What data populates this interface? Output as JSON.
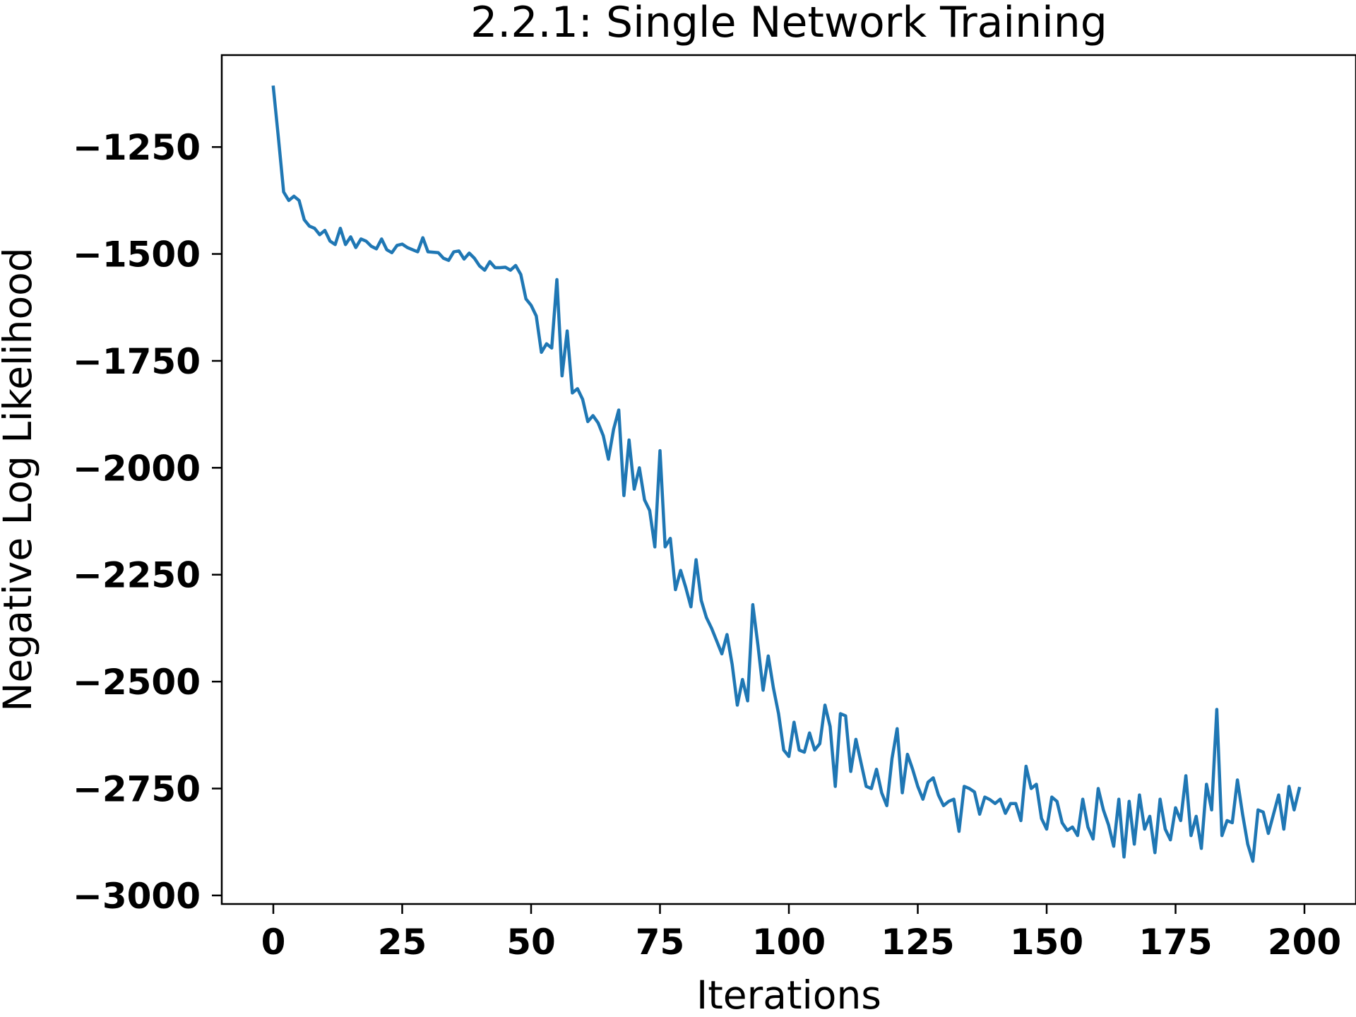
{
  "chart_data": {
    "type": "line",
    "title": "2.2.1: Single Network Training",
    "xlabel": "Iterations",
    "ylabel": "Negative Log Likelihood",
    "xlim": [
      -10,
      210
    ],
    "ylim": [
      -3020,
      -1035
    ],
    "xticks": [
      0,
      25,
      50,
      75,
      100,
      125,
      150,
      175,
      200
    ],
    "yticks": [
      -1250,
      -1500,
      -1750,
      -2000,
      -2250,
      -2500,
      -2750,
      -3000
    ],
    "xtick_labels": [
      "0",
      "25",
      "50",
      "75",
      "100",
      "125",
      "150",
      "175",
      "200"
    ],
    "ytick_labels": [
      "−1250",
      "−1500",
      "−1750",
      "−2000",
      "−2250",
      "−2500",
      "−2750",
      "−3000"
    ],
    "grid": false,
    "series": [
      {
        "color": "#1f77b4",
        "x": [
          0,
          1,
          2,
          3,
          4,
          5,
          6,
          7,
          8,
          9,
          10,
          11,
          12,
          13,
          14,
          15,
          16,
          17,
          18,
          19,
          20,
          21,
          22,
          23,
          24,
          25,
          26,
          27,
          28,
          29,
          30,
          31,
          32,
          33,
          34,
          35,
          36,
          37,
          38,
          39,
          40,
          41,
          42,
          43,
          44,
          45,
          46,
          47,
          48,
          49,
          50,
          51,
          52,
          53,
          54,
          55,
          56,
          57,
          58,
          59,
          60,
          61,
          62,
          63,
          64,
          65,
          66,
          67,
          68,
          69,
          70,
          71,
          72,
          73,
          74,
          75,
          76,
          77,
          78,
          79,
          80,
          81,
          82,
          83,
          84,
          85,
          86,
          87,
          88,
          89,
          90,
          91,
          92,
          93,
          94,
          95,
          96,
          97,
          98,
          99,
          100,
          101,
          102,
          103,
          104,
          105,
          106,
          107,
          108,
          109,
          110,
          111,
          112,
          113,
          114,
          115,
          116,
          117,
          118,
          119,
          120,
          121,
          122,
          123,
          124,
          125,
          126,
          127,
          128,
          129,
          130,
          131,
          132,
          133,
          134,
          135,
          136,
          137,
          138,
          139,
          140,
          141,
          142,
          143,
          144,
          145,
          146,
          147,
          148,
          149,
          150,
          151,
          152,
          153,
          154,
          155,
          156,
          157,
          158,
          159,
          160,
          161,
          162,
          163,
          164,
          165,
          166,
          167,
          168,
          169,
          170,
          171,
          172,
          173,
          174,
          175,
          176,
          177,
          178,
          179,
          180,
          181,
          182,
          183,
          184,
          185,
          186,
          187,
          188,
          189,
          190,
          191,
          192,
          193,
          194,
          195,
          196,
          197,
          198,
          199
        ],
        "y": [
          -1110,
          -1230,
          -1355,
          -1375,
          -1365,
          -1375,
          -1420,
          -1435,
          -1440,
          -1455,
          -1445,
          -1470,
          -1478,
          -1440,
          -1478,
          -1460,
          -1485,
          -1465,
          -1470,
          -1482,
          -1488,
          -1465,
          -1490,
          -1497,
          -1480,
          -1477,
          -1485,
          -1490,
          -1495,
          -1462,
          -1495,
          -1496,
          -1497,
          -1510,
          -1515,
          -1495,
          -1493,
          -1512,
          -1498,
          -1510,
          -1528,
          -1538,
          -1518,
          -1532,
          -1532,
          -1531,
          -1538,
          -1527,
          -1548,
          -1605,
          -1620,
          -1645,
          -1730,
          -1710,
          -1720,
          -1560,
          -1785,
          -1680,
          -1825,
          -1815,
          -1840,
          -1892,
          -1878,
          -1895,
          -1925,
          -1980,
          -1910,
          -1865,
          -2065,
          -1935,
          -2050,
          -2000,
          -2075,
          -2100,
          -2185,
          -1960,
          -2185,
          -2165,
          -2285,
          -2240,
          -2280,
          -2325,
          -2215,
          -2310,
          -2350,
          -2375,
          -2405,
          -2435,
          -2390,
          -2460,
          -2555,
          -2495,
          -2545,
          -2320,
          -2415,
          -2520,
          -2440,
          -2515,
          -2575,
          -2660,
          -2675,
          -2595,
          -2660,
          -2665,
          -2620,
          -2660,
          -2645,
          -2555,
          -2605,
          -2745,
          -2575,
          -2580,
          -2710,
          -2635,
          -2690,
          -2745,
          -2750,
          -2705,
          -2760,
          -2790,
          -2680,
          -2610,
          -2760,
          -2670,
          -2705,
          -2745,
          -2775,
          -2735,
          -2725,
          -2765,
          -2790,
          -2780,
          -2775,
          -2850,
          -2745,
          -2750,
          -2758,
          -2810,
          -2770,
          -2776,
          -2785,
          -2775,
          -2808,
          -2785,
          -2785,
          -2825,
          -2698,
          -2750,
          -2740,
          -2820,
          -2845,
          -2770,
          -2780,
          -2830,
          -2848,
          -2840,
          -2860,
          -2775,
          -2840,
          -2868,
          -2750,
          -2800,
          -2835,
          -2885,
          -2775,
          -2910,
          -2780,
          -2880,
          -2765,
          -2845,
          -2815,
          -2900,
          -2775,
          -2845,
          -2870,
          -2795,
          -2825,
          -2720,
          -2860,
          -2815,
          -2890,
          -2740,
          -2800,
          -2565,
          -2860,
          -2825,
          -2830,
          -2730,
          -2810,
          -2880,
          -2920,
          -2800,
          -2805,
          -2855,
          -2810,
          -2765,
          -2845,
          -2745,
          -2800,
          -2750
        ]
      }
    ]
  }
}
